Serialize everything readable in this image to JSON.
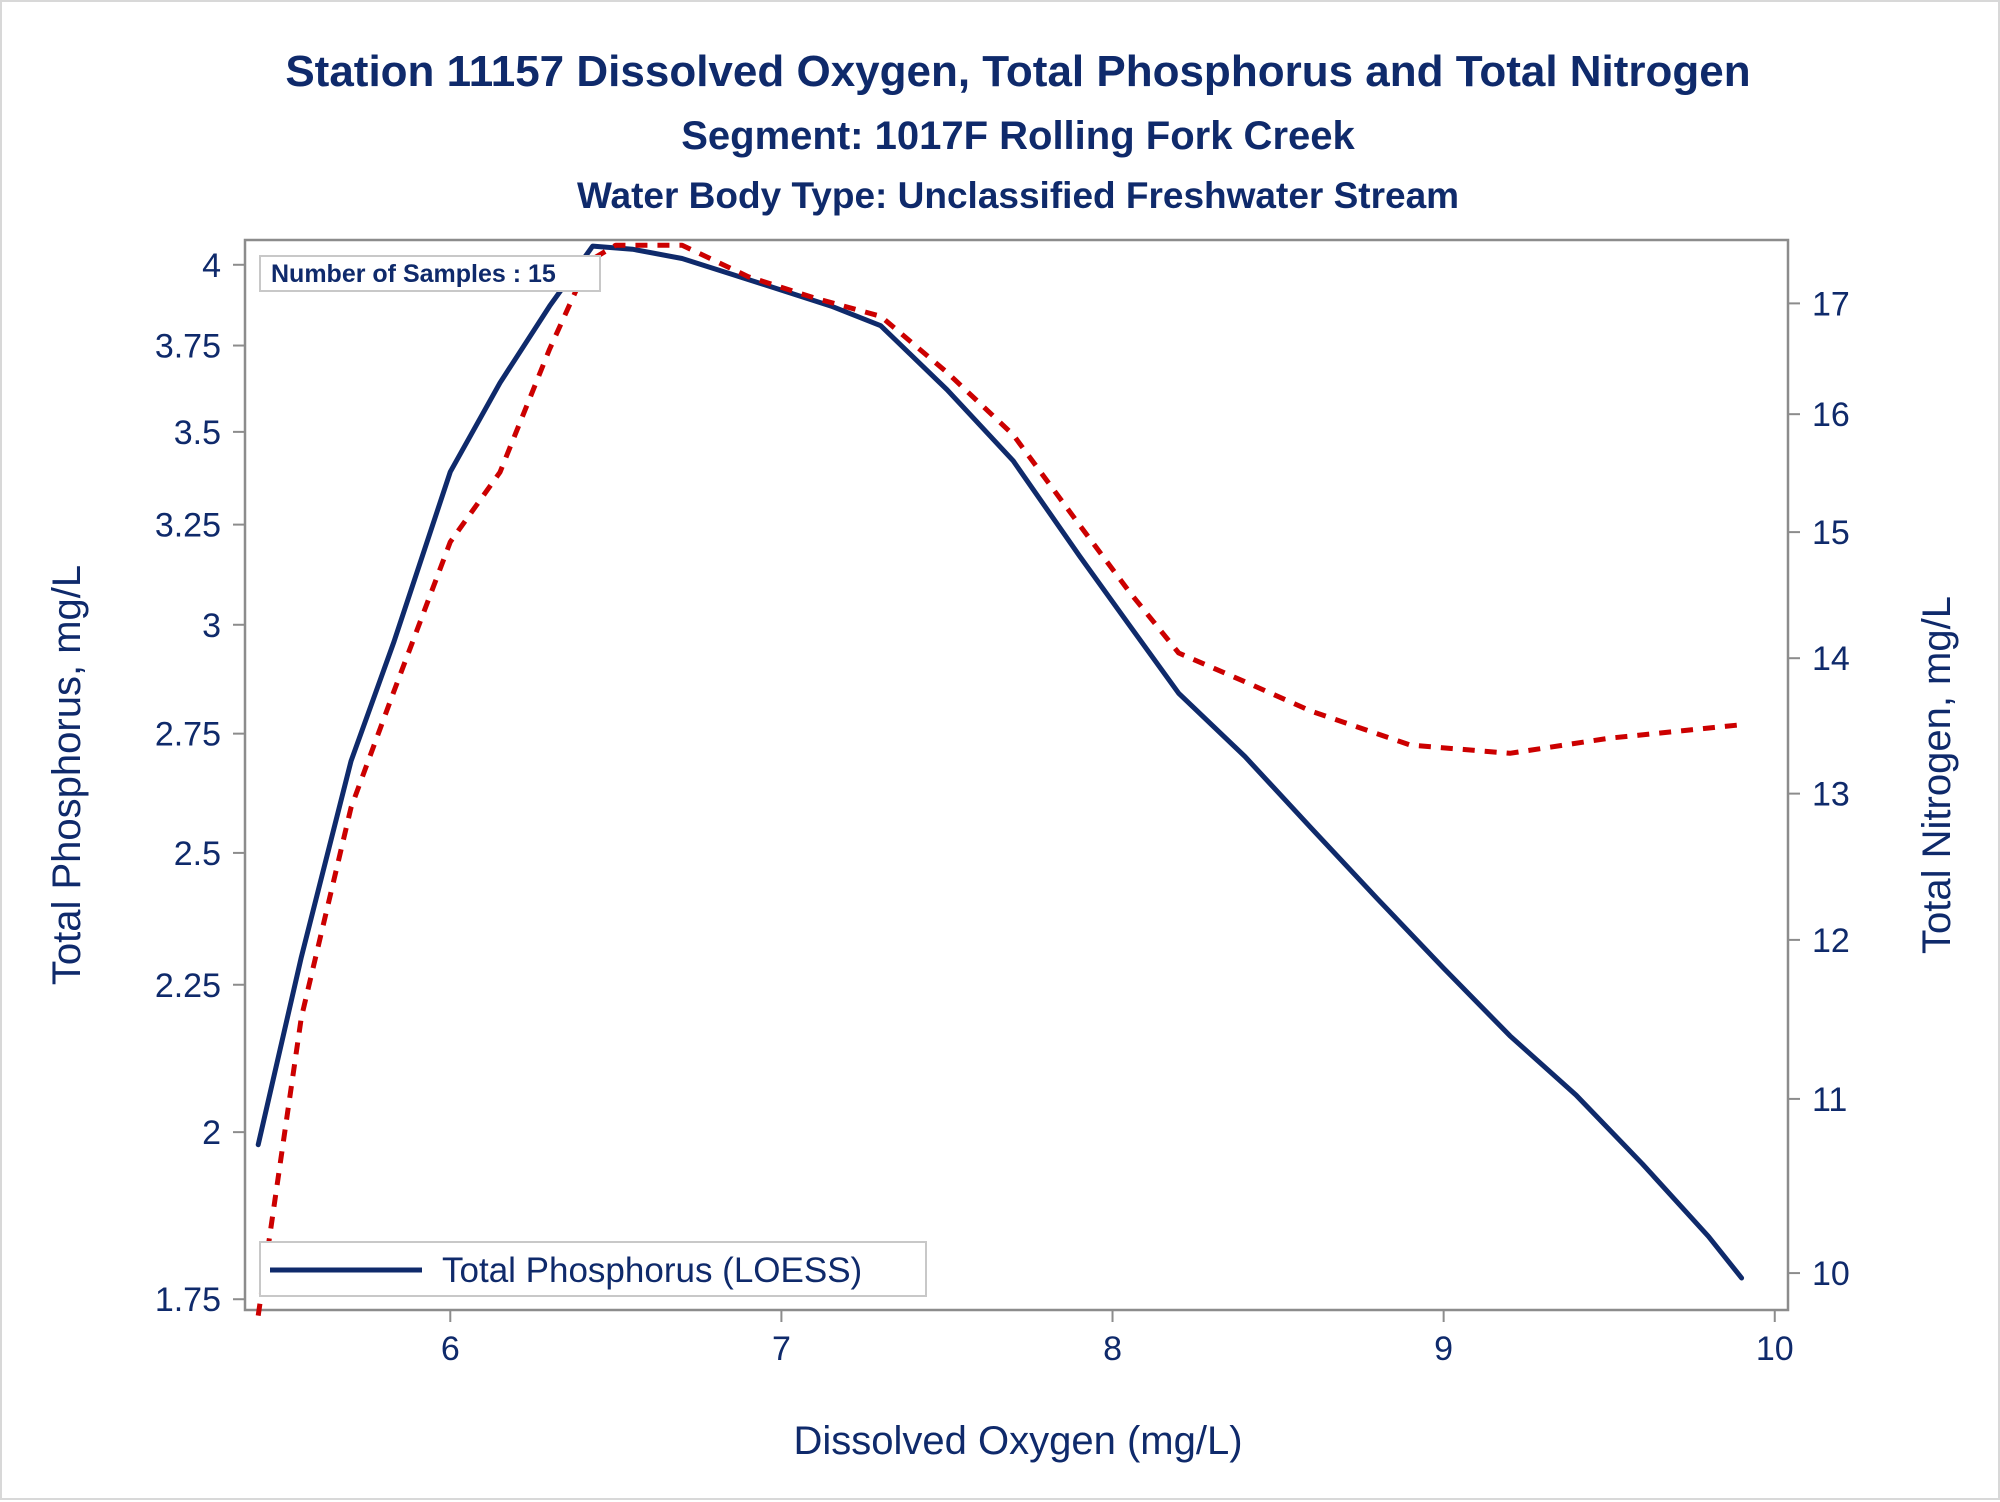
{
  "chart_data": {
    "type": "line",
    "title": "Station 11157  Dissolved Oxygen, Total Phosphorus and Total Nitrogen",
    "subtitle": "Segment: 1017F  Rolling Fork Creek",
    "subtitle2": "Water Body Type: Unclassified Freshwater Stream",
    "xlabel": "Dissolved Oxygen (mg/L)",
    "ylabel": "Total Phosphorus, mg/L",
    "y2label": "Total Nitrogen, mg/L",
    "inset_label": "Number of Samples : 15",
    "x_ticks": [
      "6",
      "7",
      "8",
      "9",
      "10"
    ],
    "y_ticks": [
      "1.75",
      "2",
      "2.25",
      "2.5",
      "2.75",
      "3",
      "3.25",
      "3.5",
      "3.75",
      "4"
    ],
    "y2_ticks": [
      "10",
      "11",
      "12",
      "13",
      "14",
      "15",
      "16",
      "17"
    ],
    "xlim": [
      5.38,
      10.04
    ],
    "ylim": [
      1.735,
      4.08
    ],
    "y_scale": "log",
    "y2lim": [
      9.8,
      17.6
    ],
    "y2_scale": "log",
    "legend": {
      "position": "bottom-left",
      "entries": [
        "Total Phosphorus (LOESS)"
      ]
    },
    "grid": false,
    "series": [
      {
        "name": "Total Phosphorus (LOESS)",
        "axis": "left",
        "color": "#0f2a6b",
        "style": "solid",
        "x": [
          5.42,
          5.55,
          5.7,
          5.83,
          6.0,
          6.15,
          6.3,
          6.43,
          6.55,
          6.7,
          6.85,
          7.0,
          7.15,
          7.3,
          7.5,
          7.7,
          7.9,
          8.05,
          8.2,
          8.4,
          8.6,
          8.8,
          9.0,
          9.2,
          9.4,
          9.6,
          9.8,
          9.9
        ],
        "y": [
          1.98,
          2.3,
          2.69,
          2.96,
          3.39,
          3.64,
          3.87,
          4.06,
          4.05,
          4.02,
          3.97,
          3.92,
          3.87,
          3.81,
          3.62,
          3.42,
          3.17,
          3.0,
          2.84,
          2.7,
          2.55,
          2.41,
          2.28,
          2.16,
          2.06,
          1.95,
          1.84,
          1.78
        ]
      },
      {
        "name": "",
        "axis": "right",
        "color": "#cc0000",
        "style": "dashed",
        "x": [
          5.42,
          5.55,
          5.7,
          5.83,
          6.0,
          6.15,
          6.3,
          6.42,
          6.5,
          6.7,
          6.9,
          7.1,
          7.3,
          7.5,
          7.7,
          7.9,
          8.05,
          8.2,
          8.4,
          8.6,
          8.9,
          9.2,
          9.5,
          9.9
        ],
        "y": [
          9.77,
          11.5,
          12.9,
          13.75,
          14.92,
          15.5,
          16.58,
          17.4,
          17.55,
          17.55,
          17.25,
          17.05,
          16.88,
          16.37,
          15.82,
          15.06,
          14.52,
          14.04,
          13.82,
          13.6,
          13.35,
          13.29,
          13.4,
          13.5
        ]
      }
    ]
  }
}
